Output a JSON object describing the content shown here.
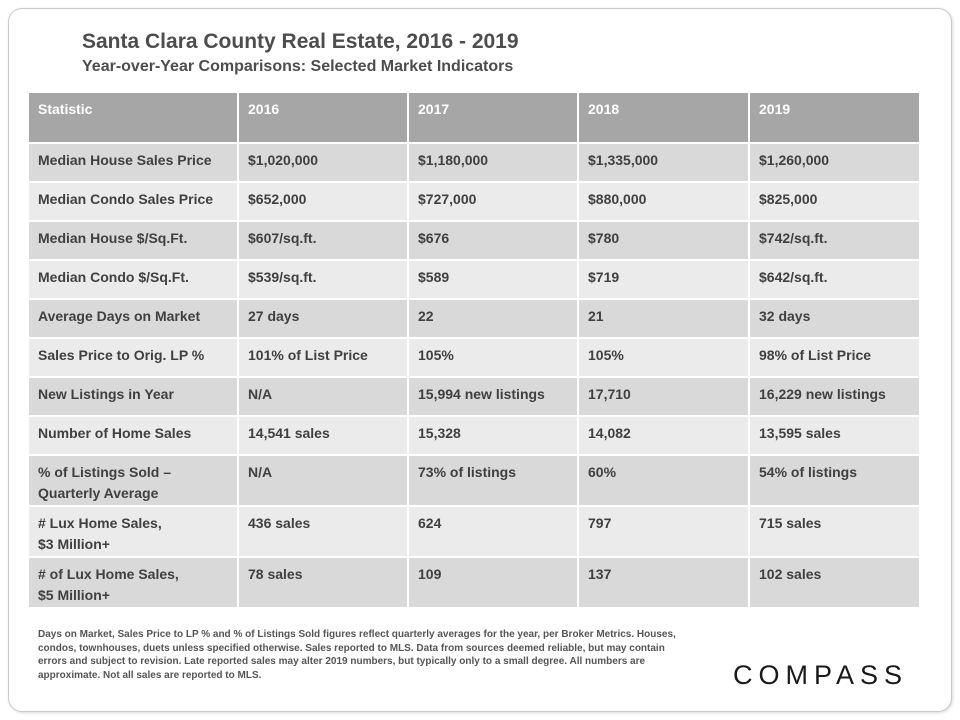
{
  "header": {
    "title": "Santa Clara County Real Estate, 2016 - 2019",
    "subtitle": "Year-over-Year  Comparisons:  Selected Market Indicators"
  },
  "table": {
    "columns": [
      "Statistic",
      "2016",
      "2017",
      "2018",
      "2019"
    ],
    "rows": [
      {
        "statistic": "Median House Sales Price",
        "y2016": "$1,020,000",
        "y2017": "$1,180,000",
        "y2018": "$1,335,000",
        "y2019": "$1,260,000"
      },
      {
        "statistic": "Median Condo Sales Price",
        "y2016": "$652,000",
        "y2017": "$727,000",
        "y2018": "$880,000",
        "y2019": "$825,000"
      },
      {
        "statistic": "Median House $/Sq.Ft.",
        "y2016": "$607/sq.ft.",
        "y2017": "$676",
        "y2018": "$780",
        "y2019": "$742/sq.ft."
      },
      {
        "statistic": "Median Condo $/Sq.Ft.",
        "y2016": "$539/sq.ft.",
        "y2017": "$589",
        "y2018": "$719",
        "y2019": "$642/sq.ft."
      },
      {
        "statistic": "Average Days on Market",
        "y2016": "27 days",
        "y2017": "22",
        "y2018": "21",
        "y2019": "32 days"
      },
      {
        "statistic": "Sales Price to Orig. LP %",
        "y2016": "101% of List Price",
        "y2017": "105%",
        "y2018": "105%",
        "y2019": "98% of List Price"
      },
      {
        "statistic": "New Listings in Year",
        "y2016": "N/A",
        "y2017": "15,994 new listings",
        "y2018": "17,710",
        "y2019": "16,229 new listings"
      },
      {
        "statistic": "Number of Home Sales",
        "y2016": "14,541 sales",
        "y2017": "15,328",
        "y2018": "14,082",
        "y2019": "13,595 sales"
      },
      {
        "statistic_line1": "% of Listings Sold –",
        "statistic_line2": "Quarterly Average",
        "y2016": "N/A",
        "y2017": "73% of listings",
        "y2018": "60%",
        "y2019": "54% of listings"
      },
      {
        "statistic_line1": "# Lux Home Sales,",
        "statistic_line2": "$3 Million+",
        "y2016": "436 sales",
        "y2017": "624",
        "y2018": "797",
        "y2019": "715 sales"
      },
      {
        "statistic_line1": "# of Lux Home Sales,",
        "statistic_line2": "$5 Million+",
        "y2016": "78 sales",
        "y2017": "109",
        "y2018": "137",
        "y2019": "102 sales"
      }
    ]
  },
  "footnote": "Days on Market, Sales Price to LP %  and % of Listings Sold figures reflect quarterly averages for the year, per Broker Metrics. Houses, condos, townhouses, duets unless specified otherwise. Sales reported to MLS. Data from sources deemed reliable, but may contain errors and subject to revision. Late reported sales may alter 2019 numbers, but typically only to a small degree. All numbers are approximate. Not all sales are reported to MLS.",
  "logo": "COMPASS",
  "colors": {
    "header_bg": "#a6a6a6",
    "row_odd_bg": "#d9d9d9",
    "row_even_bg": "#ebebeb",
    "text": "#404040"
  }
}
